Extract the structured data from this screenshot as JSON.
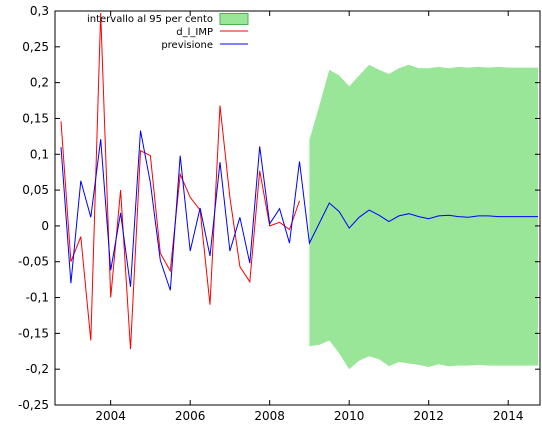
{
  "chart_data": {
    "type": "line",
    "x": [
      2002.75,
      2003.0,
      2003.25,
      2003.5,
      2003.75,
      2004.0,
      2004.25,
      2004.5,
      2004.75,
      2005.0,
      2005.25,
      2005.5,
      2005.75,
      2006.0,
      2006.25,
      2006.5,
      2006.75,
      2007.0,
      2007.25,
      2007.5,
      2007.75,
      2008.0,
      2008.25,
      2008.5,
      2008.75,
      2009.0,
      2009.25,
      2009.5,
      2009.75,
      2010.0,
      2010.25,
      2010.5,
      2010.75,
      2011.0,
      2011.25,
      2011.5,
      2011.75,
      2012.0,
      2012.25,
      2012.5,
      2012.75,
      2013.0,
      2013.25,
      2013.5,
      2013.75,
      2014.0,
      2014.25,
      2014.5,
      2014.75
    ],
    "series": [
      {
        "name": "d_l_IMP",
        "color": "#ff0000",
        "values": [
          0.146,
          -0.05,
          -0.015,
          -0.16,
          0.297,
          -0.1,
          0.05,
          -0.172,
          0.105,
          0.098,
          -0.038,
          -0.063,
          0.072,
          0.04,
          0.022,
          -0.11,
          0.168,
          0.04,
          -0.057,
          -0.078,
          0.077,
          0.0,
          0.005,
          -0.005,
          0.035,
          null,
          null,
          null,
          null,
          null,
          null,
          null,
          null,
          null,
          null,
          null,
          null,
          null,
          null,
          null,
          null,
          null,
          null,
          null,
          null,
          null,
          null,
          null,
          null
        ]
      },
      {
        "name": "previsione",
        "color": "#0000ff",
        "values": [
          0.11,
          -0.08,
          0.063,
          0.012,
          0.121,
          -0.062,
          0.018,
          -0.085,
          0.133,
          0.06,
          -0.048,
          -0.09,
          0.098,
          -0.035,
          0.025,
          -0.042,
          0.089,
          -0.035,
          0.012,
          -0.052,
          0.111,
          0.003,
          0.024,
          -0.024,
          0.09,
          -0.024,
          0.004,
          0.032,
          0.02,
          -0.003,
          0.012,
          0.022,
          0.015,
          0.006,
          0.014,
          0.017,
          0.013,
          0.01,
          0.014,
          0.015,
          0.013,
          0.012,
          0.014,
          0.014,
          0.013,
          0.013,
          0.013,
          0.013,
          0.013
        ]
      }
    ],
    "interval": {
      "name": "intervallo al 95 per cento",
      "color": "#99e699",
      "x": [
        2009.0,
        2009.25,
        2009.5,
        2009.75,
        2010.0,
        2010.25,
        2010.5,
        2010.75,
        2011.0,
        2011.25,
        2011.5,
        2011.75,
        2012.0,
        2012.25,
        2012.5,
        2012.75,
        2013.0,
        2013.25,
        2013.5,
        2013.75,
        2014.0,
        2014.25,
        2014.5,
        2014.75
      ],
      "upper": [
        0.12,
        0.168,
        0.218,
        0.21,
        0.195,
        0.21,
        0.225,
        0.218,
        0.212,
        0.22,
        0.225,
        0.22,
        0.22,
        0.222,
        0.22,
        0.222,
        0.221,
        0.222,
        0.221,
        0.222,
        0.221,
        0.221,
        0.221,
        0.221
      ],
      "lower": [
        -0.168,
        -0.166,
        -0.16,
        -0.178,
        -0.2,
        -0.188,
        -0.182,
        -0.186,
        -0.196,
        -0.19,
        -0.192,
        -0.194,
        -0.197,
        -0.193,
        -0.196,
        -0.195,
        -0.195,
        -0.194,
        -0.195,
        -0.195,
        -0.195,
        -0.195,
        -0.195,
        -0.195
      ]
    },
    "xlim": [
      2002.6,
      2014.8
    ],
    "ylim": [
      -0.25,
      0.3
    ],
    "xticks": [
      2004,
      2006,
      2008,
      2010,
      2012,
      2014
    ],
    "xtick_labels": [
      "2004",
      "2006",
      "2008",
      "2010",
      "2012",
      "2014"
    ],
    "yticks": [
      -0.25,
      -0.2,
      -0.15,
      -0.1,
      -0.05,
      0,
      0.05,
      0.1,
      0.15,
      0.2,
      0.25,
      0.3
    ],
    "ytick_labels": [
      "-0,25",
      "-0,2",
      "-0,15",
      "-0,1",
      "-0,05",
      "0",
      "0,05",
      "0,1",
      "0,15",
      "0,2",
      "0,25",
      "0,3"
    ],
    "legend": [
      "intervallo al 95 per cento",
      "d_l_IMP",
      "previsione"
    ],
    "legend_position": "top-center",
    "grid": false
  }
}
